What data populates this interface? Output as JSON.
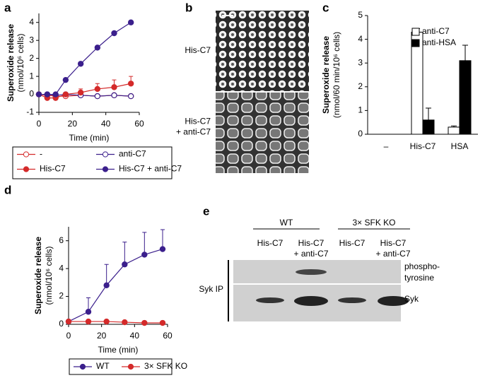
{
  "chart_data": [
    {
      "panel": "a",
      "type": "line",
      "xlabel": "Time (min)",
      "ylabel": "Superoxide release",
      "ylabel_unit": "(nmol/10⁶ cells)",
      "x": [
        0,
        5,
        10,
        16,
        25,
        35,
        45,
        55
      ],
      "xlim": [
        0,
        60
      ],
      "xticks": [
        0,
        20,
        40,
        60
      ],
      "ylim": [
        -1,
        4.5
      ],
      "yticks": [
        -1,
        0,
        1,
        2,
        3,
        4
      ],
      "series": [
        {
          "name": "-",
          "color": "#d42a2a",
          "marker": "open",
          "values": [
            0,
            -0.05,
            -0.1,
            -0.1,
            -0.05,
            -0.1,
            -0.05,
            -0.1
          ]
        },
        {
          "name": "anti-C7",
          "color": "#3b1f8c",
          "marker": "open",
          "values": [
            0,
            0,
            -0.05,
            0,
            -0.05,
            -0.1,
            -0.05,
            -0.1
          ]
        },
        {
          "name": "His-C7",
          "color": "#d42a2a",
          "marker": "filled",
          "values": [
            0,
            -0.2,
            -0.2,
            0,
            0.1,
            0.3,
            0.4,
            0.6
          ],
          "errors": [
            0,
            0.1,
            0.1,
            0.1,
            0.2,
            0.3,
            0.4,
            0.4
          ]
        },
        {
          "name": "His-C7 + anti-C7",
          "color": "#3b1f8c",
          "marker": "filled",
          "values": [
            0,
            0,
            0,
            0.8,
            1.7,
            2.6,
            3.4,
            4.0
          ]
        }
      ]
    },
    {
      "panel": "c",
      "type": "bar",
      "ylabel": "Superoxide release",
      "ylabel_unit": "(nmol/60 min/10⁶ cells)",
      "categories": [
        "–",
        "His-C7",
        "HSA"
      ],
      "ylim": [
        0,
        5
      ],
      "yticks": [
        0,
        1,
        2,
        3,
        4,
        5
      ],
      "legend": "upper right",
      "series": [
        {
          "name": "anti-C7",
          "color": "#ffffff",
          "values": [
            0,
            4.3,
            0.3
          ],
          "errors": [
            0,
            0.15,
            0.05
          ]
        },
        {
          "name": "anti-HSA",
          "color": "#000000",
          "values": [
            0,
            0.6,
            3.1
          ],
          "errors": [
            0,
            0.5,
            0.65
          ]
        }
      ]
    },
    {
      "panel": "d",
      "type": "line",
      "xlabel": "Time (min)",
      "ylabel": "Superoxide release",
      "ylabel_unit": "(nmol/10⁶ cells)",
      "x": [
        0,
        12,
        23,
        34,
        46,
        57
      ],
      "xlim": [
        0,
        60
      ],
      "xticks": [
        0,
        20,
        40,
        60
      ],
      "ylim": [
        0,
        7
      ],
      "yticks": [
        0,
        2,
        4,
        6
      ],
      "series": [
        {
          "name": "WT",
          "color": "#3b1f8c",
          "marker": "filled",
          "values": [
            0.2,
            0.9,
            2.8,
            4.3,
            5.0,
            5.4
          ],
          "errors": [
            0,
            1,
            1.5,
            1.6,
            1.6,
            1.4
          ]
        },
        {
          "name": "3× SFK KO",
          "color": "#d42a2a",
          "marker": "filled",
          "values": [
            0.2,
            0.2,
            0.2,
            0.15,
            0.1,
            0.1
          ]
        }
      ]
    }
  ],
  "micrograph": {
    "panel": "b",
    "rows": [
      {
        "label_lines": [
          "His-C7"
        ]
      },
      {
        "label_lines": [
          "His-C7",
          "+ anti-C7"
        ]
      }
    ]
  },
  "blot": {
    "panel": "e",
    "groups": [
      {
        "label": "WT",
        "lanes": [
          [
            "His-C7"
          ],
          [
            "His-C7",
            "+ anti-C7"
          ]
        ]
      },
      {
        "label": "3× SFK KO",
        "lanes": [
          [
            "His-C7"
          ],
          [
            "His-C7",
            "+ anti-C7"
          ]
        ]
      }
    ],
    "ip": "Syk IP",
    "rows": [
      [
        "phospho-",
        "tyrosine"
      ],
      [
        "Syk"
      ]
    ]
  }
}
